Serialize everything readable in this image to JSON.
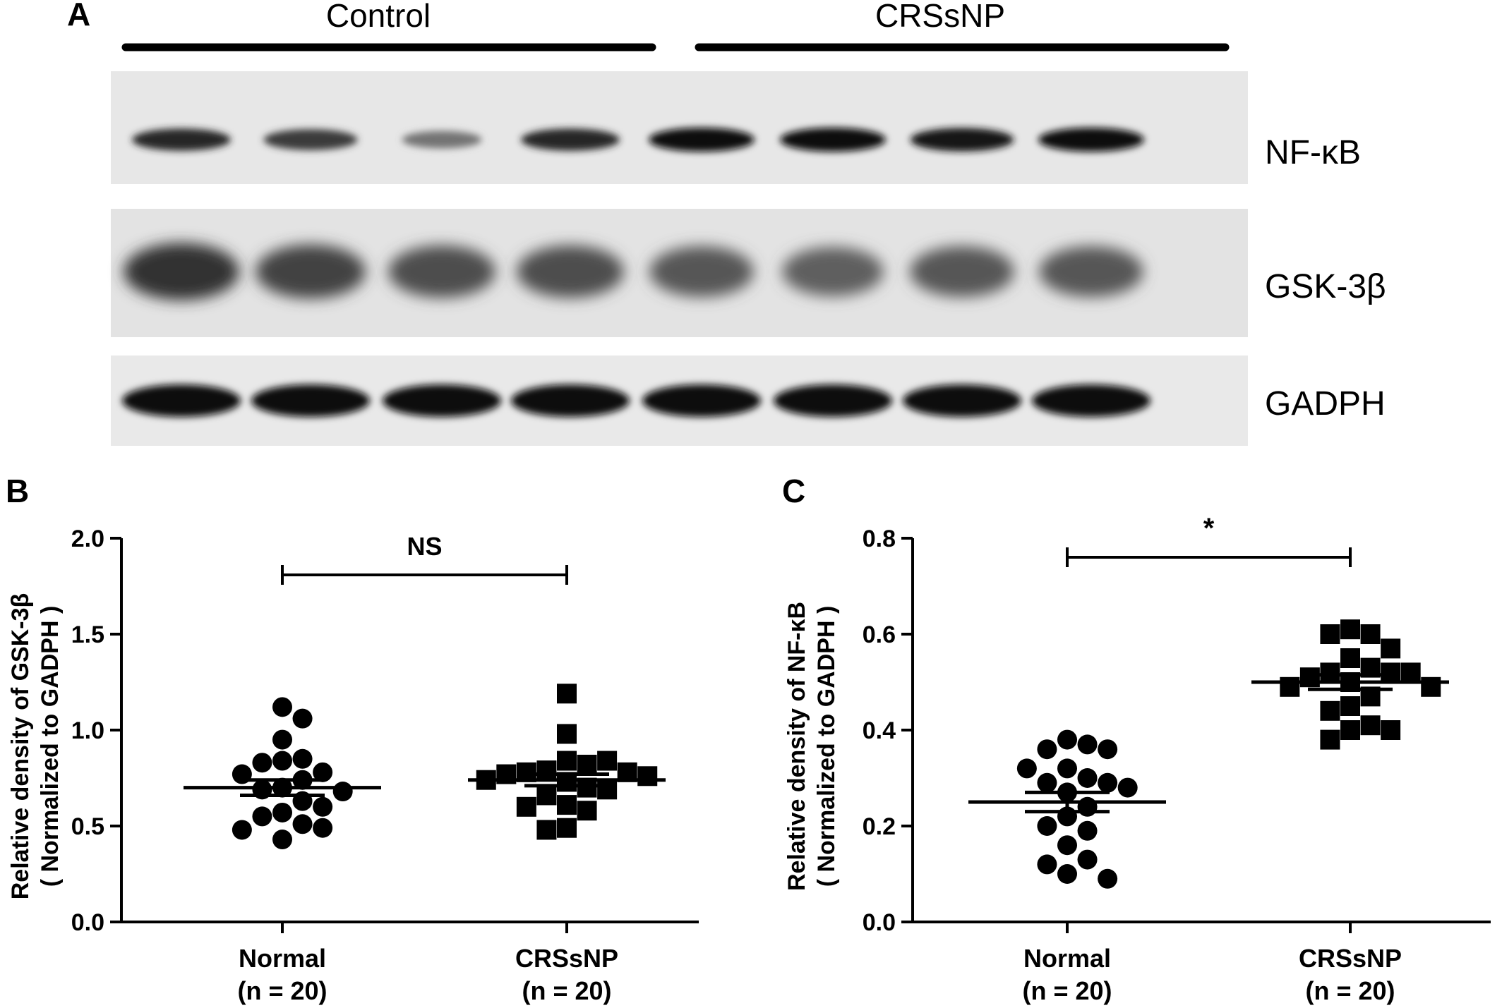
{
  "panel_a": {
    "letter": "A",
    "groups": [
      "Control",
      "CRSsNP"
    ],
    "rows": [
      {
        "label": "NF-κB",
        "intensity": [
          0.85,
          0.75,
          0.45,
          0.85,
          1.0,
          1.0,
          0.95,
          1.0
        ]
      },
      {
        "label": "GSK-3β",
        "intensity": [
          0.8,
          0.7,
          0.65,
          0.65,
          0.6,
          0.55,
          0.6,
          0.6
        ]
      },
      {
        "label": "GADPH",
        "intensity": [
          1.0,
          1.0,
          1.0,
          1.0,
          1.0,
          1.0,
          1.0,
          1.0
        ]
      }
    ]
  },
  "chart_data": [
    {
      "type": "scatter",
      "letter": "B",
      "ylabel": [
        "Relative density of GSK-3β",
        "( Normalized to GADPH )"
      ],
      "ylim": [
        0,
        2.0
      ],
      "yticks": [
        "0.0",
        "0.5",
        "1.0",
        "1.5",
        "2.0"
      ],
      "significance": "NS",
      "groups": [
        {
          "name": "Normal",
          "n_label": "(n = 20)",
          "marker": "circle",
          "mean": 0.7,
          "sem": 0.04,
          "values": [
            1.12,
            1.06,
            0.95,
            0.85,
            0.84,
            0.83,
            0.78,
            0.77,
            0.74,
            0.7,
            0.69,
            0.68,
            0.63,
            0.6,
            0.57,
            0.55,
            0.51,
            0.49,
            0.48,
            0.43
          ]
        },
        {
          "name": "CRSsNP",
          "n_label": "(n = 20)",
          "marker": "square",
          "mean": 0.74,
          "sem": 0.03,
          "values": [
            1.19,
            0.98,
            0.84,
            0.84,
            0.82,
            0.79,
            0.78,
            0.78,
            0.77,
            0.76,
            0.74,
            0.73,
            0.7,
            0.69,
            0.66,
            0.61,
            0.6,
            0.58,
            0.49,
            0.48
          ]
        }
      ]
    },
    {
      "type": "scatter",
      "letter": "C",
      "ylabel": [
        "Relative density of NF-κB",
        "( Normalized to GADPH )"
      ],
      "ylim": [
        0,
        0.8
      ],
      "yticks": [
        "0.0",
        "0.2",
        "0.4",
        "0.6",
        "0.8"
      ],
      "significance": "*",
      "groups": [
        {
          "name": "Normal",
          "n_label": "(n = 20)",
          "marker": "circle",
          "mean": 0.25,
          "sem": 0.02,
          "values": [
            0.38,
            0.37,
            0.36,
            0.36,
            0.32,
            0.32,
            0.3,
            0.29,
            0.29,
            0.28,
            0.27,
            0.24,
            0.22,
            0.2,
            0.19,
            0.16,
            0.13,
            0.12,
            0.1,
            0.09
          ]
        },
        {
          "name": "CRSsNP",
          "n_label": "(n = 20)",
          "marker": "square",
          "mean": 0.5,
          "sem": 0.015,
          "values": [
            0.61,
            0.6,
            0.6,
            0.57,
            0.55,
            0.53,
            0.52,
            0.52,
            0.52,
            0.51,
            0.5,
            0.49,
            0.49,
            0.47,
            0.45,
            0.44,
            0.41,
            0.4,
            0.4,
            0.38
          ]
        }
      ]
    }
  ]
}
